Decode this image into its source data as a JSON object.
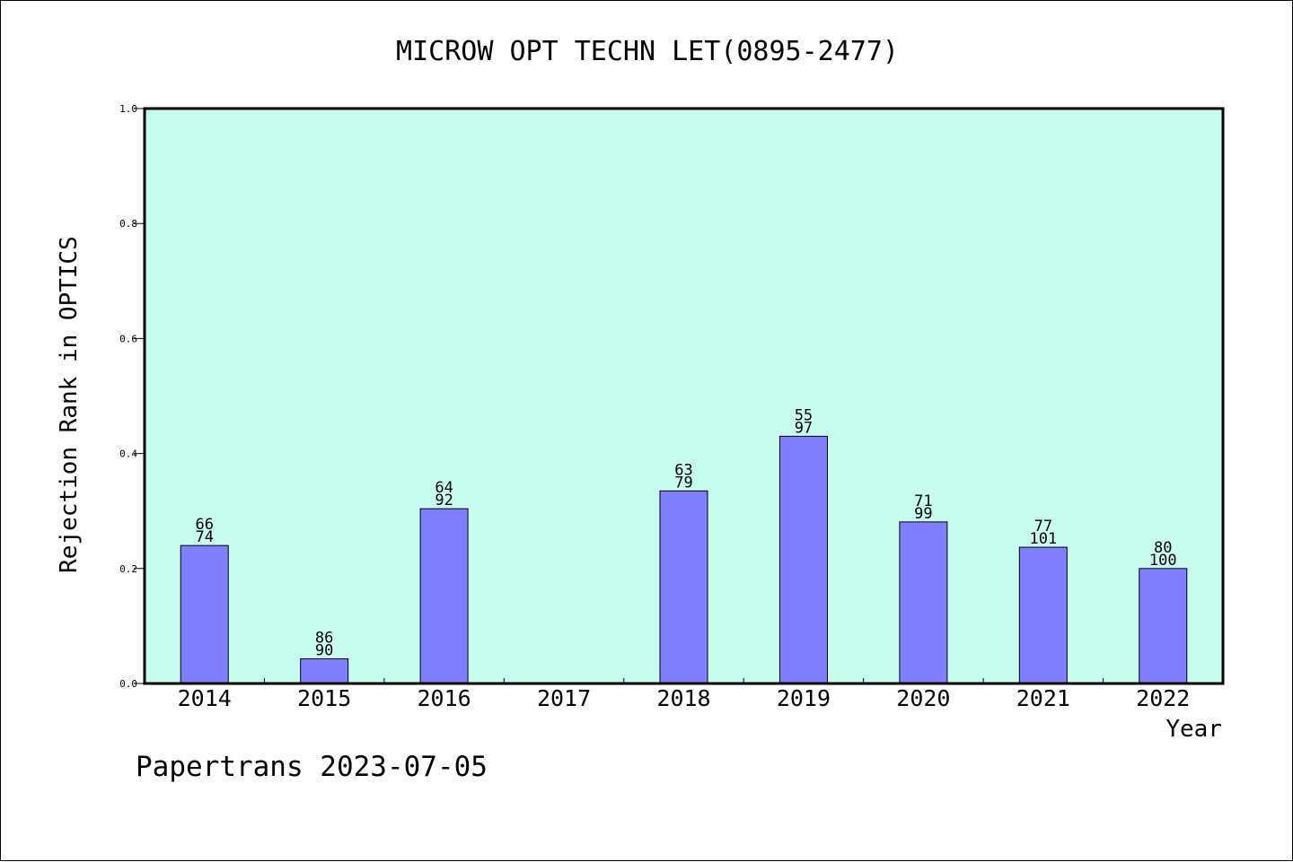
{
  "chart_data": {
    "type": "bar",
    "title": "MICROW OPT TECHN LET(0895-2477)",
    "xlabel": "Year",
    "ylabel": "Rejection Rank in OPTICS",
    "ylim": [
      0,
      1.0
    ],
    "yticks": [
      "0.0",
      "0.2",
      "0.4",
      "0.6",
      "0.8",
      "1.0"
    ],
    "grid": false,
    "categories": [
      "2014",
      "2015",
      "2016",
      "2017",
      "2018",
      "2019",
      "2020",
      "2021",
      "2022"
    ],
    "values": [
      0.24,
      0.043,
      0.304,
      null,
      0.335,
      0.43,
      0.281,
      0.237,
      0.2
    ],
    "labels_top": [
      "66",
      "86",
      "64",
      "",
      "63",
      "55",
      "71",
      "77",
      "80"
    ],
    "labels_bottom": [
      "74",
      "90",
      "92",
      "",
      "79",
      "97",
      "99",
      "101",
      "100"
    ],
    "colors": {
      "plot_background": "#c8fcee",
      "bar_fill": "#8080ff",
      "bar_stroke": "#000000"
    }
  },
  "footer": {
    "text": "Papertrans 2023-07-05"
  }
}
